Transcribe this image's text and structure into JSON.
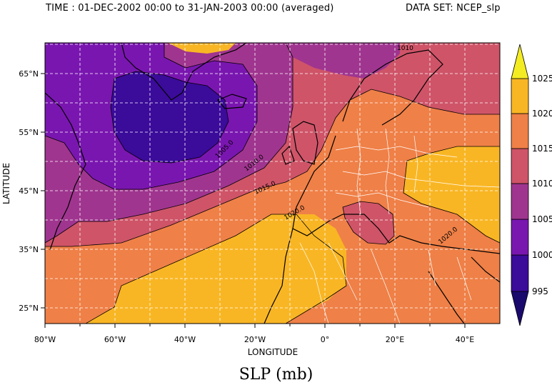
{
  "header": {
    "time": "TIME : 01-DEC-2002 00:00 to 31-JAN-2003 00:00 (averaged)",
    "dataset": "DATA SET: NCEP_slp"
  },
  "title": "SLP (mb)",
  "axes": {
    "xlabel": "LONGITUDE",
    "ylabel": "LATITUDE",
    "x_ticks": [
      "80°W",
      "60°W",
      "40°W",
      "20°W",
      "0°",
      "20°E",
      "40°E"
    ],
    "y_ticks": [
      "65°N",
      "55°N",
      "45°N",
      "35°N",
      "25°N"
    ]
  },
  "colorbar": {
    "levels": [
      "995",
      "1000",
      "1005",
      "1010",
      "1015",
      "1020",
      "1025"
    ],
    "colors": [
      "#1a0a6e",
      "#3b0b9a",
      "#7a16b0",
      "#a0358f",
      "#cf5468",
      "#ef8047",
      "#f9b624",
      "#f4ec22"
    ]
  },
  "contour_labels": [
    "1005.0",
    "1010.0",
    "1015.0",
    "1020.0",
    "1020.0",
    "1010"
  ],
  "map": {
    "lon_range": [
      -80,
      50
    ],
    "lat_range": [
      22,
      70
    ],
    "grid": "dashed-white",
    "field": "sea level pressure (mb), Dec-Jan mean"
  }
}
